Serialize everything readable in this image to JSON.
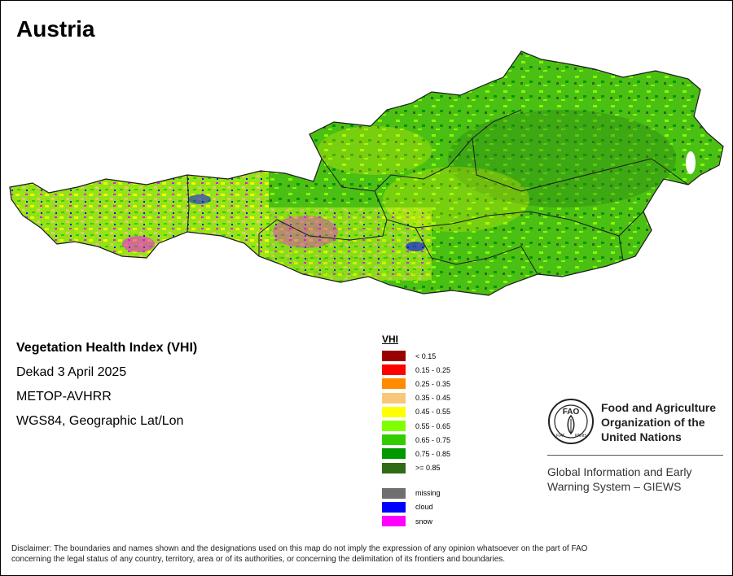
{
  "map": {
    "title": "Austria",
    "info": {
      "index_name": "Vegetation Health Index (VHI)",
      "period": "Dekad 3 April 2025",
      "sensor": "METOP-AVHRR",
      "projection": "WGS84, Geographic Lat/Lon"
    },
    "legend": {
      "title": "VHI",
      "classes": [
        {
          "label": "< 0.15",
          "color": "#990000"
        },
        {
          "label": "0.15 - 0.25",
          "color": "#ff0000"
        },
        {
          "label": "0.25 - 0.35",
          "color": "#ff8c00"
        },
        {
          "label": "0.35 - 0.45",
          "color": "#f7c87a"
        },
        {
          "label": "0.45 - 0.55",
          "color": "#ffff00"
        },
        {
          "label": "0.55 - 0.65",
          "color": "#80ff00"
        },
        {
          "label": "0.65 - 0.75",
          "color": "#33cc00"
        },
        {
          "label": "0.75 - 0.85",
          "color": "#009900"
        },
        {
          "label": ">= 0.85",
          "color": "#2e6b14"
        }
      ],
      "special": [
        {
          "label": "missing",
          "color": "#707070"
        },
        {
          "label": "cloud",
          "color": "#0000ff"
        },
        {
          "label": "snow",
          "color": "#ff00ff"
        }
      ]
    },
    "organization": {
      "name_line1": "Food and Agriculture",
      "name_line2": "Organization of the",
      "name_line3": "United Nations",
      "system_line1": "Global Information and Early",
      "system_line2": "Warning System – GIEWS",
      "logo_text": "FAO",
      "logo_motto_left": "FIAT",
      "logo_motto_right": "PANIS"
    },
    "disclaimer_line1": "Disclaimer: The boundaries and names shown and the designations used on this map do not imply the expression of any opinion whatsoever on the part of FAO",
    "disclaimer_line2": "concerning the legal status of any country, territory, area or of its authorities, or concerning the delimitation of its frontiers and boundaries."
  }
}
